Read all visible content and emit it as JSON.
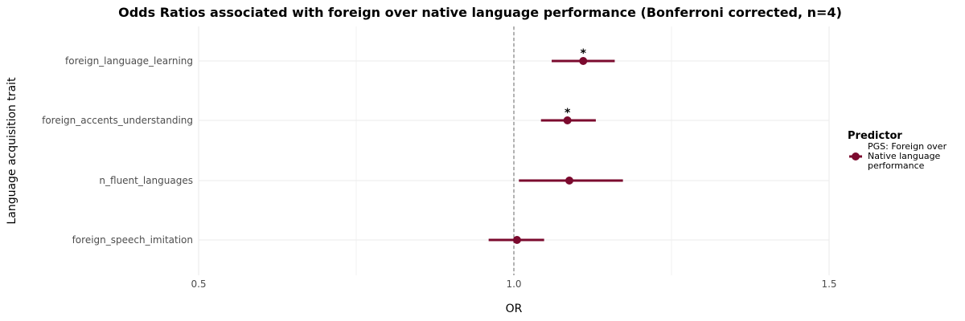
{
  "chart_data": {
    "type": "scatter",
    "subtype": "forest-plot",
    "title": "Odds Ratios associated with foreign over native language performance (Bonferroni corrected, n=4)",
    "xlabel": "OR",
    "ylabel": "Language acquisition trait",
    "xlim": [
      0.5,
      1.5
    ],
    "x_ticks": [
      0.5,
      1.0,
      1.5
    ],
    "x_tick_labels": [
      "0.5",
      "1.0",
      "1.5"
    ],
    "reference_line": 1.0,
    "grid": true,
    "legend": {
      "title": "Predictor",
      "placement": "right",
      "entries": [
        {
          "lines": [
            "PGS: Foreign over",
            "Native language",
            "performance"
          ],
          "color": "#7b0a2e"
        }
      ]
    },
    "series": [
      {
        "color": "#7b0a2e",
        "points": [
          {
            "trait": "foreign_language_learning",
            "or": 1.11,
            "ci_low": 1.06,
            "ci_high": 1.16,
            "label": "*"
          },
          {
            "trait": "foreign_accents_understanding",
            "or": 1.085,
            "ci_low": 1.043,
            "ci_high": 1.13,
            "label": "*"
          },
          {
            "trait": "n_fluent_languages",
            "or": 1.088,
            "ci_low": 1.008,
            "ci_high": 1.173,
            "label": ""
          },
          {
            "trait": "foreign_speech_imitation",
            "or": 1.005,
            "ci_low": 0.96,
            "ci_high": 1.048,
            "label": ""
          }
        ]
      }
    ]
  }
}
